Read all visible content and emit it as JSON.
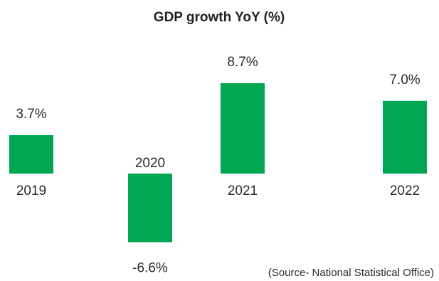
{
  "chart_data": {
    "type": "bar",
    "title": "GDP growth YoY (%)",
    "categories": [
      "2019",
      "2020",
      "2021",
      "2022"
    ],
    "values": [
      3.7,
      -6.6,
      8.7,
      7.0
    ],
    "value_labels": [
      "3.7%",
      "-6.6%",
      "8.7%",
      "7.0%"
    ],
    "xlabel": "",
    "ylabel": "",
    "ylim": [
      -6.6,
      8.7
    ],
    "grid": false,
    "legend": "none",
    "bar_color": "#00a651",
    "source": "(Source- National Statistical Office)"
  }
}
